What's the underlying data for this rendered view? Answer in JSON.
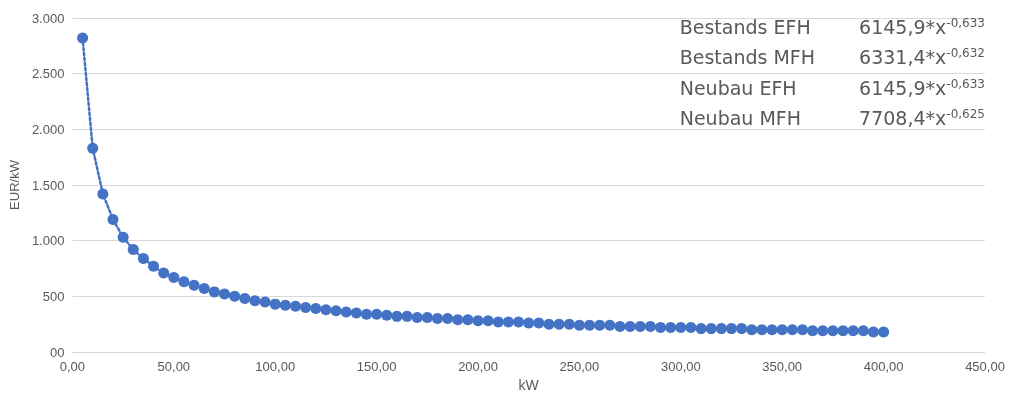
{
  "chart_data": {
    "type": "line",
    "xlabel": "kW",
    "ylabel": "EUR/kW",
    "x": [
      5,
      10,
      15,
      20,
      25,
      30,
      35,
      40,
      45,
      50,
      55,
      60,
      65,
      70,
      75,
      80,
      85,
      90,
      95,
      100,
      105,
      110,
      115,
      120,
      125,
      130,
      135,
      140,
      145,
      150,
      155,
      160,
      165,
      170,
      175,
      180,
      185,
      190,
      195,
      200,
      205,
      210,
      215,
      220,
      225,
      230,
      235,
      240,
      245,
      250,
      255,
      260,
      265,
      270,
      275,
      280,
      285,
      290,
      295,
      300,
      305,
      310,
      315,
      320,
      325,
      330,
      335,
      340,
      345,
      350,
      355,
      360,
      365,
      370,
      375,
      380,
      385,
      390,
      395,
      400
    ],
    "series": [
      {
        "color": "#4472c4",
        "values": [
          2820,
          1830,
          1420,
          1190,
          1030,
          920,
          840,
          770,
          710,
          670,
          630,
          600,
          570,
          540,
          520,
          500,
          480,
          460,
          450,
          430,
          420,
          410,
          400,
          390,
          380,
          370,
          360,
          350,
          340,
          340,
          330,
          320,
          320,
          310,
          310,
          300,
          300,
          290,
          290,
          280,
          280,
          270,
          270,
          270,
          260,
          260,
          250,
          250,
          250,
          240,
          240,
          240,
          240,
          230,
          230,
          230,
          230,
          220,
          220,
          220,
          220,
          210,
          210,
          210,
          210,
          210,
          200,
          200,
          200,
          200,
          200,
          200,
          190,
          190,
          190,
          190,
          190,
          190,
          180,
          180
        ]
      }
    ],
    "marker": "circle",
    "line_style": "dotted",
    "grid": "y",
    "xlim": [
      0,
      450
    ],
    "xticks": [
      {
        "value": 0,
        "label": "0,00"
      },
      {
        "value": 50,
        "label": "50,00"
      },
      {
        "value": 100,
        "label": "100,00"
      },
      {
        "value": 150,
        "label": "150,00"
      },
      {
        "value": 200,
        "label": "200,00"
      },
      {
        "value": 250,
        "label": "250,00"
      },
      {
        "value": 300,
        "label": "300,00"
      },
      {
        "value": 350,
        "label": "350,00"
      },
      {
        "value": 400,
        "label": "400,00"
      },
      {
        "value": 450,
        "label": "450,00"
      }
    ],
    "ylim": [
      0,
      3000
    ],
    "yticks": [
      {
        "value": 0,
        "label": "00"
      },
      {
        "value": 500,
        "label": "500"
      },
      {
        "value": 1000,
        "label": "1.000"
      },
      {
        "value": 1500,
        "label": "1.500"
      },
      {
        "value": 2000,
        "label": "2.000"
      },
      {
        "value": 2500,
        "label": "2.500"
      },
      {
        "value": 3000,
        "label": "3.000"
      }
    ],
    "annotations": [
      "Bestands EFH",
      "6145,9*x$^{-0,633}$",
      "Bestands MFH",
      "6331,4*x$^{-0,632}$",
      "Neubau EFH",
      "6145,9*x$^{-0,633}$",
      "Neubau MFH",
      "7708,4*x$^{-0,625}$"
    ]
  }
}
